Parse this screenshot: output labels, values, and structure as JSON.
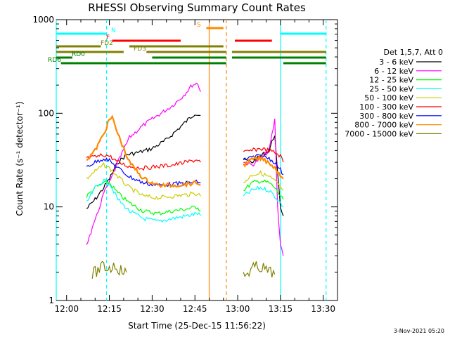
{
  "chart_data": {
    "type": "line",
    "title": "RHESSI Observing Summary Count Rates",
    "xlabel": "Start Time (25-Dec-15 11:56:22)",
    "ylabel": "Count Rate (s⁻¹ detector⁻¹)",
    "ylim": [
      1,
      1000
    ],
    "yscale": "log",
    "xlim": [
      "11:56:22",
      "13:35:00"
    ],
    "x_ticks": [
      "12:00",
      "12:15",
      "12:30",
      "12:45",
      "13:00",
      "13:15",
      "13:30"
    ],
    "y_ticks": [
      "1",
      "10",
      "100",
      "1000"
    ],
    "legend_title": "Det 1,5,7, Att 0",
    "legend_position": "right",
    "grid": false,
    "series": [
      {
        "name": "3 - 6 keV",
        "color": "#000000",
        "points": [
          [
            "12:07",
            9.5
          ],
          [
            "12:10",
            12
          ],
          [
            "12:13",
            16
          ],
          [
            "12:15",
            20
          ],
          [
            "12:18",
            30
          ],
          [
            "12:21",
            36
          ],
          [
            "12:25",
            38
          ],
          [
            "12:30",
            42
          ],
          [
            "12:35",
            52
          ],
          [
            "12:40",
            72
          ],
          [
            "12:43",
            88
          ],
          [
            "12:45",
            100
          ],
          [
            "12:47",
            95
          ],
          [
            "13:02",
            32
          ],
          [
            "13:05",
            30
          ],
          [
            "13:08",
            35
          ],
          [
            "13:11",
            40
          ],
          [
            "13:13",
            60
          ],
          [
            "13:14",
            22
          ],
          [
            "13:15",
            10
          ],
          [
            "13:16",
            8
          ]
        ]
      },
      {
        "name": "6 - 12 keV",
        "color": "#ff00ff",
        "points": [
          [
            "12:07",
            4
          ],
          [
            "12:10",
            7
          ],
          [
            "12:13",
            14
          ],
          [
            "12:15",
            18
          ],
          [
            "12:18",
            30
          ],
          [
            "12:22",
            55
          ],
          [
            "12:27",
            75
          ],
          [
            "12:32",
            95
          ],
          [
            "12:37",
            120
          ],
          [
            "12:41",
            155
          ],
          [
            "12:44",
            200
          ],
          [
            "12:46",
            210
          ],
          [
            "12:47",
            170
          ],
          [
            "13:02",
            30
          ],
          [
            "13:05",
            28
          ],
          [
            "13:08",
            33
          ],
          [
            "13:11",
            40
          ],
          [
            "13:13",
            85
          ],
          [
            "13:14",
            10
          ],
          [
            "13:15",
            4
          ],
          [
            "13:16",
            3
          ]
        ]
      },
      {
        "name": "12 - 25 keV",
        "color": "#00ff00",
        "points": [
          [
            "12:07",
            13
          ],
          [
            "12:10",
            16
          ],
          [
            "12:13",
            18
          ],
          [
            "12:15",
            18
          ],
          [
            "12:18",
            14
          ],
          [
            "12:22",
            11
          ],
          [
            "12:27",
            9
          ],
          [
            "12:32",
            8.5
          ],
          [
            "12:37",
            9
          ],
          [
            "12:42",
            9.5
          ],
          [
            "12:46",
            10
          ],
          [
            "12:47",
            9
          ],
          [
            "13:02",
            15
          ],
          [
            "13:05",
            18
          ],
          [
            "13:08",
            19
          ],
          [
            "13:11",
            18
          ],
          [
            "13:13",
            16
          ],
          [
            "13:15",
            13
          ],
          [
            "13:16",
            12
          ]
        ]
      },
      {
        "name": "25 - 50 keV",
        "color": "#00ffff",
        "points": [
          [
            "12:07",
            11
          ],
          [
            "12:10",
            16
          ],
          [
            "12:13",
            19
          ],
          [
            "12:15",
            18
          ],
          [
            "12:18",
            12
          ],
          [
            "12:22",
            9
          ],
          [
            "12:27",
            7.5
          ],
          [
            "12:32",
            7
          ],
          [
            "12:37",
            7.5
          ],
          [
            "12:42",
            8
          ],
          [
            "12:46",
            8.5
          ],
          [
            "12:47",
            8
          ],
          [
            "13:02",
            13
          ],
          [
            "13:05",
            15
          ],
          [
            "13:08",
            16
          ],
          [
            "13:11",
            15
          ],
          [
            "13:13",
            13
          ],
          [
            "13:15",
            11
          ],
          [
            "13:16",
            10
          ]
        ]
      },
      {
        "name": "50 - 100 keV",
        "color": "#cccc00",
        "points": [
          [
            "12:07",
            20
          ],
          [
            "12:10",
            24
          ],
          [
            "12:13",
            28
          ],
          [
            "12:15",
            26
          ],
          [
            "12:18",
            21
          ],
          [
            "12:22",
            16
          ],
          [
            "12:27",
            13
          ],
          [
            "12:32",
            12.5
          ],
          [
            "12:37",
            13
          ],
          [
            "12:42",
            13.5
          ],
          [
            "12:46",
            14
          ],
          [
            "12:47",
            13
          ],
          [
            "13:02",
            18
          ],
          [
            "13:05",
            22
          ],
          [
            "13:08",
            23
          ],
          [
            "13:11",
            21
          ],
          [
            "13:13",
            19
          ],
          [
            "13:15",
            16
          ],
          [
            "13:16",
            15
          ]
        ]
      },
      {
        "name": "100 - 300 keV",
        "color": "#ff0000",
        "points": [
          [
            "12:07",
            33
          ],
          [
            "12:10",
            34
          ],
          [
            "12:13",
            36
          ],
          [
            "12:15",
            35
          ],
          [
            "12:18",
            30
          ],
          [
            "12:22",
            27
          ],
          [
            "12:27",
            26
          ],
          [
            "12:32",
            27
          ],
          [
            "12:37",
            28
          ],
          [
            "12:42",
            30
          ],
          [
            "12:46",
            32
          ],
          [
            "12:47",
            30
          ],
          [
            "13:02",
            38
          ],
          [
            "13:05",
            40
          ],
          [
            "13:08",
            42
          ],
          [
            "13:11",
            40
          ],
          [
            "13:13",
            38
          ],
          [
            "13:15",
            35
          ],
          [
            "13:16",
            30
          ]
        ]
      },
      {
        "name": "300 - 800 keV",
        "color": "#0000ff",
        "points": [
          [
            "12:07",
            27
          ],
          [
            "12:10",
            30
          ],
          [
            "12:13",
            33
          ],
          [
            "12:15",
            31
          ],
          [
            "12:18",
            26
          ],
          [
            "12:22",
            21
          ],
          [
            "12:27",
            18
          ],
          [
            "12:32",
            17
          ],
          [
            "12:37",
            17.5
          ],
          [
            "12:42",
            18
          ],
          [
            "12:46",
            18.5
          ],
          [
            "12:47",
            18
          ],
          [
            "13:02",
            32
          ],
          [
            "13:05",
            34
          ],
          [
            "13:08",
            35
          ],
          [
            "13:11",
            33
          ],
          [
            "13:13",
            30
          ],
          [
            "13:15",
            25
          ],
          [
            "13:16",
            22
          ]
        ]
      },
      {
        "name": "800 - 7000 keV",
        "color": "#ff8800",
        "points": [
          [
            "12:07",
            32
          ],
          [
            "12:10",
            40
          ],
          [
            "12:13",
            60
          ],
          [
            "12:15",
            85
          ],
          [
            "12:16",
            90
          ],
          [
            "12:18",
            60
          ],
          [
            "12:22",
            30
          ],
          [
            "12:27",
            20
          ],
          [
            "12:32",
            17
          ],
          [
            "12:37",
            17
          ],
          [
            "12:42",
            17.5
          ],
          [
            "12:46",
            18
          ],
          [
            "12:47",
            17
          ],
          [
            "13:02",
            28
          ],
          [
            "13:05",
            32
          ],
          [
            "13:08",
            33
          ],
          [
            "13:11",
            30
          ],
          [
            "13:13",
            26
          ],
          [
            "13:15",
            22
          ],
          [
            "13:16",
            20
          ]
        ]
      },
      {
        "name": "7000 - 15000 keV",
        "color": "#808000",
        "points": [
          [
            "12:09",
            1.9
          ],
          [
            "12:11",
            2.1
          ],
          [
            "12:13",
            2.3
          ],
          [
            "12:15",
            2.2
          ],
          [
            "12:17",
            2.4
          ],
          [
            "12:19",
            2.1
          ],
          [
            "12:21",
            2.0
          ],
          [
            "13:02",
            1.8
          ],
          [
            "13:05",
            2.2
          ],
          [
            "13:08",
            2.3
          ],
          [
            "13:11",
            2.0
          ],
          [
            "13:13",
            1.9
          ]
        ]
      }
    ],
    "time_markers": {
      "cyan_solid": [
        "11:56:22",
        "13:15"
      ],
      "cyan_dashed": [
        "12:14",
        "13:31"
      ],
      "orange_solid": [
        "12:50"
      ],
      "orange_dashed": [
        "12:56"
      ]
    },
    "flag_bars": [
      {
        "label": "N",
        "color": "#00ffff",
        "segments": [
          [
            "11:56:22",
            "12:14"
          ],
          [
            "13:15",
            "13:31"
          ]
        ]
      },
      {
        "label": "S",
        "color": "#ff8800",
        "segments": [
          [
            "12:49",
            "12:55"
          ]
        ]
      },
      {
        "label": "F",
        "color": "#ff0000",
        "segments": [
          [
            "12:16",
            "12:40"
          ],
          [
            "12:59",
            "13:12"
          ]
        ]
      },
      {
        "label": "FD2",
        "color": "#808000",
        "segments": [
          [
            "11:56:22",
            "12:12"
          ],
          [
            "12:22",
            "12:55"
          ]
        ]
      },
      {
        "label": "FD3",
        "color": "#808000",
        "segments": [
          [
            "11:56:22",
            "12:20"
          ],
          [
            "12:28",
            "12:56"
          ],
          [
            "12:58",
            "13:31"
          ]
        ]
      },
      {
        "label": "RD0",
        "color": "#008000",
        "segments": [
          [
            "11:56:22",
            "12:02"
          ],
          [
            "12:30",
            "12:56"
          ],
          [
            "12:58",
            "13:31"
          ]
        ]
      },
      {
        "label": "RD6",
        "color": "#008000",
        "segments": [
          [
            "11:58",
            "12:14"
          ],
          [
            "12:12",
            "12:56"
          ],
          [
            "13:16",
            "13:31"
          ]
        ]
      }
    ]
  },
  "footer_date": "3-Nov-2021 05:20"
}
